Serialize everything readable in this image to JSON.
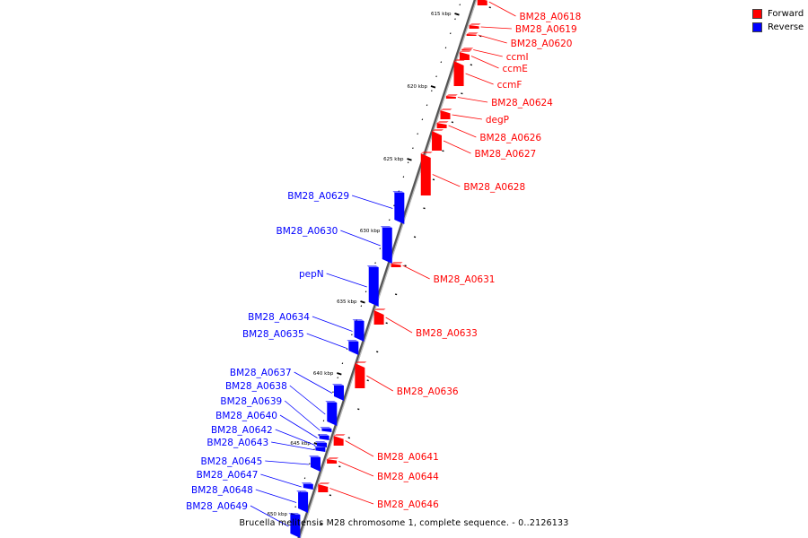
{
  "legend": {
    "forward_label": "Forward",
    "reverse_label": "Reverse",
    "forward_color": "#ff0000",
    "reverse_color": "#0000ff"
  },
  "caption": "Brucella melitensis M28 chromosome 1, complete sequence. - 0..2126133",
  "ticks": [
    "615 kbp",
    "620 kbp",
    "625 kbp",
    "630 kbp",
    "635 kbp",
    "640 kbp",
    "645 kbp",
    "650 kbp"
  ],
  "forward_genes": [
    {
      "label": "BM28_A0618"
    },
    {
      "label": "BM28_A0619"
    },
    {
      "label": "BM28_A0620"
    },
    {
      "label": "ccmI"
    },
    {
      "label": "ccmE"
    },
    {
      "label": "ccmF"
    },
    {
      "label": "BM28_A0624"
    },
    {
      "label": "degP"
    },
    {
      "label": "BM28_A0626"
    },
    {
      "label": "BM28_A0627"
    },
    {
      "label": "BM28_A0628"
    },
    {
      "label": "BM28_A0631"
    },
    {
      "label": "BM28_A0633"
    },
    {
      "label": "BM28_A0636"
    },
    {
      "label": "BM28_A0641"
    },
    {
      "label": "BM28_A0644"
    },
    {
      "label": "BM28_A0646"
    }
  ],
  "reverse_genes": [
    {
      "label": "BM28_A0629"
    },
    {
      "label": "BM28_A0630"
    },
    {
      "label": "pepN"
    },
    {
      "label": "BM28_A0634"
    },
    {
      "label": "BM28_A0635"
    },
    {
      "label": "BM28_A0637"
    },
    {
      "label": "BM28_A0638"
    },
    {
      "label": "BM28_A0639"
    },
    {
      "label": "BM28_A0640"
    },
    {
      "label": "BM28_A0642"
    },
    {
      "label": "BM28_A0643"
    },
    {
      "label": "BM28_A0645"
    },
    {
      "label": "BM28_A0647"
    },
    {
      "label": "BM28_A0648"
    },
    {
      "label": "BM28_A0649"
    }
  ]
}
